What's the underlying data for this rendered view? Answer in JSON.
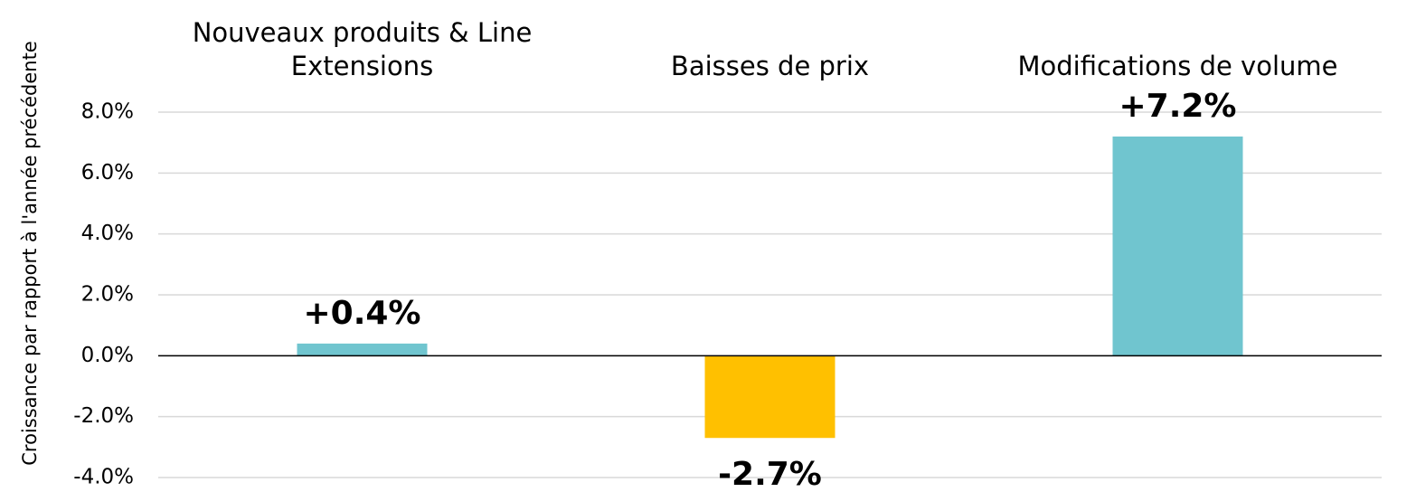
{
  "chart_data": {
    "type": "bar",
    "y_label": "Croissance par rapport à l'année précédente",
    "categories": [
      "Nouveaux produits & Line Extensions",
      "Baisses de prix",
      "Modifications de volume"
    ],
    "values": [
      0.4,
      -2.7,
      7.2
    ],
    "value_labels": [
      "+0.4%",
      "-2.7%",
      "+7.2%"
    ],
    "colors": [
      "#70c5cf",
      "#ffc000",
      "#70c5cf"
    ],
    "ylim": [
      -4,
      8
    ],
    "yticks": [
      {
        "value": -4,
        "label": "-4.0%"
      },
      {
        "value": -2,
        "label": "-2.0%"
      },
      {
        "value": 0,
        "label": "0.0%"
      },
      {
        "value": 2,
        "label": "2.0%"
      },
      {
        "value": 4,
        "label": "4.0%"
      },
      {
        "value": 6,
        "label": "6.0%"
      },
      {
        "value": 8,
        "label": "8.0%"
      }
    ],
    "grid": true
  }
}
